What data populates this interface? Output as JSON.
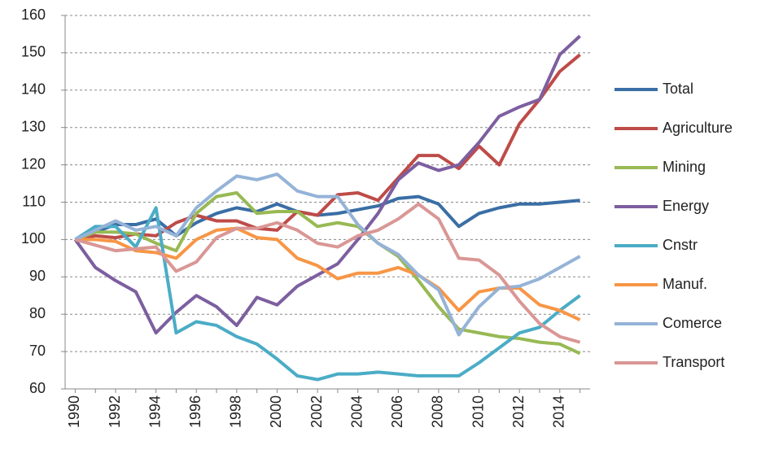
{
  "chart_data": {
    "type": "line",
    "x": [
      1990,
      1991,
      1992,
      1993,
      1994,
      1995,
      1996,
      1997,
      1998,
      1999,
      2000,
      2001,
      2002,
      2003,
      2004,
      2005,
      2006,
      2007,
      2008,
      2009,
      2010,
      2011,
      2012,
      2013,
      2014,
      2015
    ],
    "xlim": [
      1989.5,
      2015.5
    ],
    "xticks": [
      1990,
      1992,
      1994,
      1996,
      1998,
      2000,
      2002,
      2004,
      2006,
      2008,
      2010,
      2012,
      2014
    ],
    "ylim": [
      60,
      160
    ],
    "yticks": [
      60,
      70,
      80,
      90,
      100,
      110,
      120,
      130,
      140,
      150,
      160
    ],
    "grid": true,
    "legend": "right",
    "series": [
      {
        "name": "Total",
        "color": "#3a6ea5",
        "values": [
          100,
          102,
          104,
          104,
          105.5,
          101,
          104.5,
          107,
          108.5,
          107.5,
          109.5,
          107.5,
          106.5,
          107,
          108,
          109,
          111,
          111.5,
          109.5,
          103.5,
          107,
          108.5,
          109.5,
          109.5,
          110,
          110.5
        ]
      },
      {
        "name": "Agriculture",
        "color": "#be4b48",
        "values": [
          100,
          101,
          100.5,
          101.5,
          101,
          104.5,
          106.5,
          105,
          105,
          103,
          102.5,
          107.5,
          106.5,
          112,
          112.5,
          110.5,
          116.5,
          122.5,
          122.5,
          119,
          125,
          120,
          131,
          137.5,
          145,
          149.5
        ]
      },
      {
        "name": "Mining",
        "color": "#98b954",
        "values": [
          100,
          102,
          102,
          101.5,
          99,
          97,
          107,
          111.5,
          112.5,
          107,
          107.5,
          107.5,
          103.5,
          104.5,
          103.5,
          99,
          95.5,
          89,
          82,
          76,
          75,
          74,
          73.5,
          72.5,
          72,
          69.5
        ]
      },
      {
        "name": "Energy",
        "color": "#7d5fa0",
        "values": [
          100,
          92.5,
          89,
          86,
          75,
          80.5,
          85,
          82,
          77,
          84.5,
          82.5,
          87.5,
          90.5,
          93.5,
          100,
          107,
          116,
          120.5,
          118.5,
          120,
          126,
          133,
          135.5,
          137.5,
          149.5,
          154.5
        ]
      },
      {
        "name": "Cnstr",
        "color": "#4bacc6",
        "values": [
          100,
          103.5,
          103.5,
          98,
          108.5,
          75,
          78,
          77,
          74,
          72,
          68,
          63.5,
          62.5,
          64,
          64,
          64.5,
          64,
          63.5,
          63.5,
          63.5,
          67,
          71,
          75,
          76.5,
          81,
          85
        ]
      },
      {
        "name": "Manuf.",
        "color": "#f79646",
        "values": [
          100,
          100,
          99.5,
          97,
          96.5,
          95,
          100,
          102.5,
          103,
          100.5,
          100,
          95,
          93,
          89.5,
          91,
          91,
          92.5,
          90.5,
          87,
          81,
          86,
          87,
          87,
          82.5,
          81,
          78.5
        ]
      },
      {
        "name": "Comerce",
        "color": "#95b3d7",
        "values": [
          100,
          102.5,
          105,
          102.5,
          103.5,
          101,
          108.5,
          113,
          117,
          116,
          117.5,
          113,
          111.5,
          111.5,
          104,
          99,
          96,
          90.5,
          86.5,
          74.5,
          82,
          87,
          87.5,
          89.5,
          92.5,
          95.5
        ]
      },
      {
        "name": "Transport",
        "color": "#d99795",
        "values": [
          100,
          98.5,
          97,
          97.5,
          98,
          91.5,
          94,
          100.5,
          103,
          103,
          104.5,
          102.5,
          99,
          98,
          101,
          102.5,
          105.5,
          109.5,
          105.5,
          95,
          94.5,
          90.5,
          83.5,
          77.5,
          74,
          72.5
        ]
      }
    ]
  }
}
